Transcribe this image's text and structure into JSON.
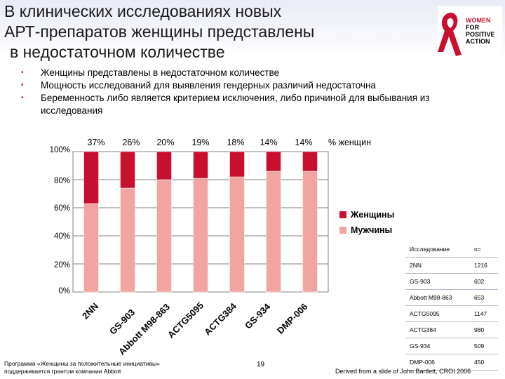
{
  "title_lines": [
    "В клинических исследованиях новых",
    "АРТ-препаратов женщины представлены",
    "в недостаточном количестве"
  ],
  "logo": {
    "lines": [
      "WOMEN",
      "FOR",
      "POSITIVE",
      "ACTION"
    ]
  },
  "bullets": [
    "Женщины представлены в недостаточном количестве",
    "Мощность исследований для выявления гендерных различий недостаточна",
    "Беременность либо является критерием исключения, либо причиной для выбывания из исследования"
  ],
  "colors": {
    "women": "#c8102e",
    "men": "#f2a5a0",
    "accent": "#c0182c",
    "band_top": "#eef0f8"
  },
  "chart_data": {
    "type": "bar",
    "stacked": true,
    "categories": [
      "2NN",
      "GS-903",
      "Abbott M98-863",
      "ACTG5095",
      "ACTG384",
      "GS-934",
      "DMP-006"
    ],
    "series": [
      {
        "name": "Женщины",
        "values": [
          37,
          26,
          20,
          19,
          18,
          14,
          14
        ]
      },
      {
        "name": "Мужчины",
        "values": [
          63,
          74,
          80,
          81,
          82,
          86,
          86
        ]
      }
    ],
    "top_labels": [
      "37%",
      "26%",
      "20%",
      "19%",
      "18%",
      "14%",
      "14%"
    ],
    "top_label_title": "% женщин",
    "ylim": [
      0,
      100
    ],
    "yticks": [
      "0%",
      "20%",
      "40%",
      "60%",
      "80%",
      "100%"
    ],
    "legend": [
      "Женщины",
      "Мужчины"
    ]
  },
  "table": {
    "headers": [
      "Исследование",
      "n="
    ],
    "rows": [
      [
        "2NN",
        "1216"
      ],
      [
        "GS-903",
        "602"
      ],
      [
        "Abbott M98-863",
        "653"
      ],
      [
        "ACTG5095",
        "1147"
      ],
      [
        "ACTG384",
        "980"
      ],
      [
        "GS-934",
        "509"
      ],
      [
        "DMP-006",
        "450"
      ]
    ]
  },
  "footer": {
    "left_lines": [
      "Программа «Женщины за положительные инициативы»",
      "поддерживается грантом компании Abbott"
    ],
    "page": "19",
    "right": "Derived from a slide of John Bartlett, CROI 2006"
  }
}
